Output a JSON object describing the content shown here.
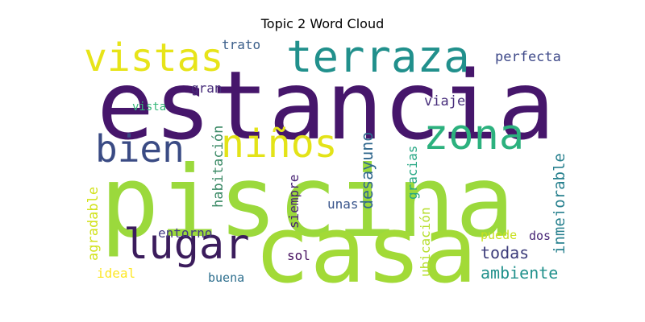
{
  "chart_data": {
    "type": "wordcloud",
    "title": "Topic 2 Word Cloud",
    "words": [
      {
        "text": "estancia",
        "weight": 1.0,
        "color": "#46166b",
        "orientation": "horizontal"
      },
      {
        "text": "piscina",
        "weight": 0.98,
        "color": "#9bd93c",
        "orientation": "horizontal"
      },
      {
        "text": "casa",
        "weight": 0.9,
        "color": "#a2da37",
        "orientation": "horizontal"
      },
      {
        "text": "terraza",
        "weight": 0.55,
        "color": "#21908c",
        "orientation": "horizontal"
      },
      {
        "text": "vistas",
        "weight": 0.46,
        "color": "#e7e419",
        "orientation": "horizontal"
      },
      {
        "text": "lugar",
        "weight": 0.46,
        "color": "#3b1c5c",
        "orientation": "horizontal"
      },
      {
        "text": "zona",
        "weight": 0.46,
        "color": "#2cb17e",
        "orientation": "horizontal"
      },
      {
        "text": "niños",
        "weight": 0.43,
        "color": "#e3e318",
        "orientation": "horizontal"
      },
      {
        "text": "bien",
        "weight": 0.43,
        "color": "#3a4b84",
        "orientation": "horizontal"
      },
      {
        "text": "ambiente",
        "weight": 0.2,
        "color": "#21918c",
        "orientation": "horizontal"
      },
      {
        "text": "todas",
        "weight": 0.2,
        "color": "#3c3c7a",
        "orientation": "horizontal"
      },
      {
        "text": "perfecta",
        "weight": 0.17,
        "color": "#3e4989",
        "orientation": "horizontal"
      },
      {
        "text": "viaje",
        "weight": 0.17,
        "color": "#472d7b",
        "orientation": "horizontal"
      },
      {
        "text": "desayuno",
        "weight": 0.19,
        "color": "#31688e",
        "orientation": "vertical"
      },
      {
        "text": "inmejorable",
        "weight": 0.19,
        "color": "#27808e",
        "orientation": "vertical"
      },
      {
        "text": "habitación",
        "weight": 0.17,
        "color": "#3b8a66",
        "orientation": "vertical"
      },
      {
        "text": "agradable",
        "weight": 0.16,
        "color": "#d2e21b",
        "orientation": "vertical"
      },
      {
        "text": "gracias",
        "weight": 0.16,
        "color": "#26a784",
        "orientation": "vertical"
      },
      {
        "text": "ubicación",
        "weight": 0.16,
        "color": "#b5de2b",
        "orientation": "vertical"
      },
      {
        "text": "siempre",
        "weight": 0.16,
        "color": "#482374",
        "orientation": "vertical"
      },
      {
        "text": "trato",
        "weight": 0.15,
        "color": "#3b5f8a",
        "orientation": "horizontal"
      },
      {
        "text": "gran",
        "weight": 0.15,
        "color": "#472c7a",
        "orientation": "horizontal"
      },
      {
        "text": "vista",
        "weight": 0.14,
        "color": "#35b779",
        "orientation": "horizontal"
      },
      {
        "text": "entorno",
        "weight": 0.15,
        "color": "#443a83",
        "orientation": "horizontal"
      },
      {
        "text": "unas",
        "weight": 0.15,
        "color": "#39558c",
        "orientation": "horizontal"
      },
      {
        "text": "sol",
        "weight": 0.15,
        "color": "#450e5e",
        "orientation": "horizontal"
      },
      {
        "text": "ideal",
        "weight": 0.15,
        "color": "#fde725",
        "orientation": "horizontal"
      },
      {
        "text": "buena",
        "weight": 0.14,
        "color": "#2e6f8e",
        "orientation": "horizontal"
      },
      {
        "text": "puede",
        "weight": 0.14,
        "color": "#c8e020",
        "orientation": "horizontal"
      },
      {
        "text": "dos",
        "weight": 0.14,
        "color": "#482677",
        "orientation": "horizontal"
      }
    ]
  }
}
